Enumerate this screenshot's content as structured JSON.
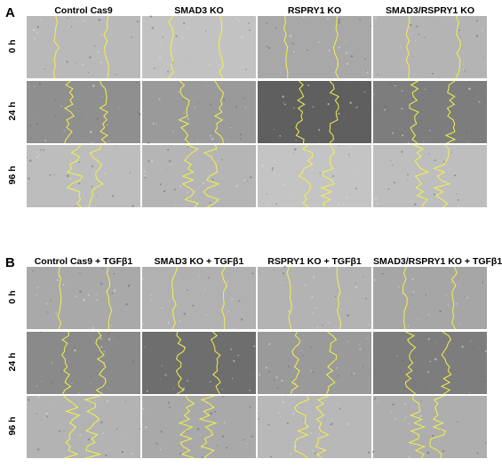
{
  "figure": {
    "panels": [
      {
        "letter": "A",
        "columns": [
          "Control Cas9",
          "SMAD3 KO",
          "RSPRY1 KO",
          "SMAD3/RSPRY1 KO"
        ],
        "rows": [
          "0 h",
          "24 h",
          "96 h"
        ],
        "tiles": [
          [
            "#b9b9b9",
            "#c2c2c2",
            "#a8a8a8",
            "#b4b4b4"
          ],
          [
            "#8f8f8f",
            "#9a9a9a",
            "#5f5f5f",
            "#7d7d7d"
          ],
          [
            "#bdbdbd",
            "#b5b5b5",
            "#c4c4c4",
            "#bebebe"
          ]
        ]
      },
      {
        "letter": "B",
        "columns": [
          "Control Cas9 + TGFβ1",
          "SMAD3 KO + TGFβ1",
          "RSPRY1 KO + TGFβ1",
          "SMAD3/RSPRY1 KO + TGFβ1"
        ],
        "rows": [
          "0 h",
          "24 h",
          "96 h"
        ],
        "tiles": [
          [
            "#a9a9a9",
            "#b1b1b1",
            "#b3b3b3",
            "#a6a6a6"
          ],
          [
            "#8a8a8a",
            "#6e6e6e",
            "#9a9a9a",
            "#7d7d7d"
          ],
          [
            "#b3b3b3",
            "#a9a9a9",
            "#b8b8b8",
            "#aeaeae"
          ]
        ]
      }
    ],
    "outline_color": "#f2f24a"
  }
}
